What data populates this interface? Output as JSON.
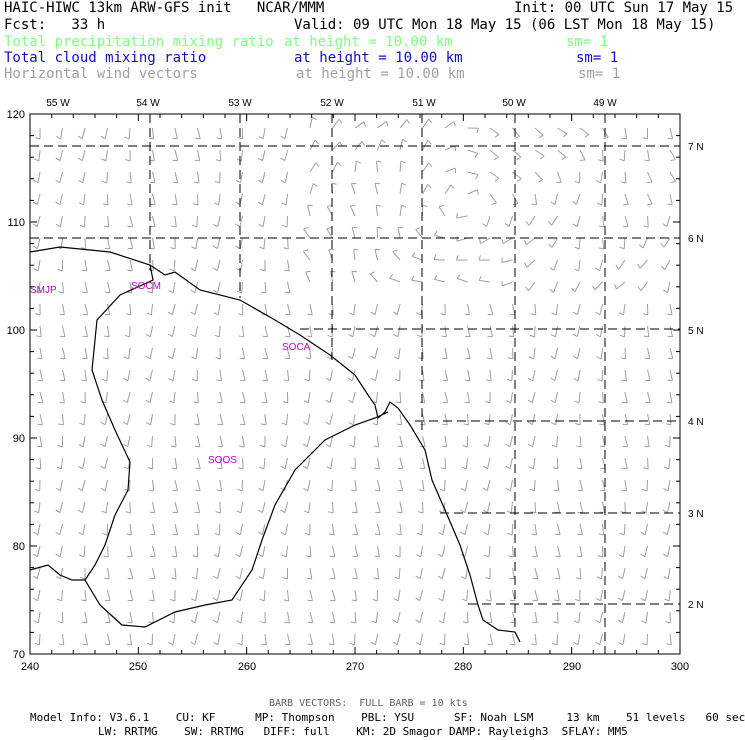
{
  "header": {
    "title": "HAIC-HIWC 13km ARW-GFS init   NCAR/MMM",
    "init": "Init: 00 UTC Sun 17 May 15",
    "fcst": "Fcst:   33 h",
    "valid": "Valid: 09 UTC Mon 18 May 15 (06 LST Mon 18 May 15)"
  },
  "fields": [
    {
      "name": "Total precipitation mixing ratio",
      "height": "at height = 10.00 km",
      "sm": "sm= 1",
      "color": "#80ff80"
    },
    {
      "name": "Total cloud mixing ratio",
      "height": "at height = 10.00 km",
      "sm": "sm= 1",
      "color": "#1010c0"
    },
    {
      "name": "Horizontal wind vectors",
      "height": "at height = 10.00 km",
      "sm": "sm= 1",
      "color": "#a0a0a0"
    }
  ],
  "map": {
    "x_ticks": [
      "240",
      "250",
      "260",
      "270",
      "280",
      "290",
      "300"
    ],
    "y_ticks": [
      "120",
      "110",
      "100",
      "90",
      "80",
      "70"
    ],
    "lon_labels": [
      "55 W",
      "54 W",
      "53 W",
      "52 W",
      "51 W",
      "50 W",
      "49 W"
    ],
    "lat_labels": [
      "7 N",
      "6 N",
      "5 N",
      "4 N",
      "3 N",
      "2 N"
    ],
    "stations": [
      "SMJP",
      "SOCM",
      "SOCA",
      "SOOS"
    ],
    "station_color": "#c000c0",
    "barb_color": "#a0a0a0"
  },
  "footer": {
    "barb_note": "BARB VECTORS:  FULL BARB = 10 kts",
    "model_line1": "Model Info: V3.6.1    CU: KF      MP: Thompson    PBL: YSU      SF: Noah LSM     13 km    51 levels   60 sec",
    "model_line2": "LW: RRTMG    SW: RRTMG   DIFF: full    KM: 2D Smagor DAMP: Rayleigh3  SFLAY: MM5"
  }
}
